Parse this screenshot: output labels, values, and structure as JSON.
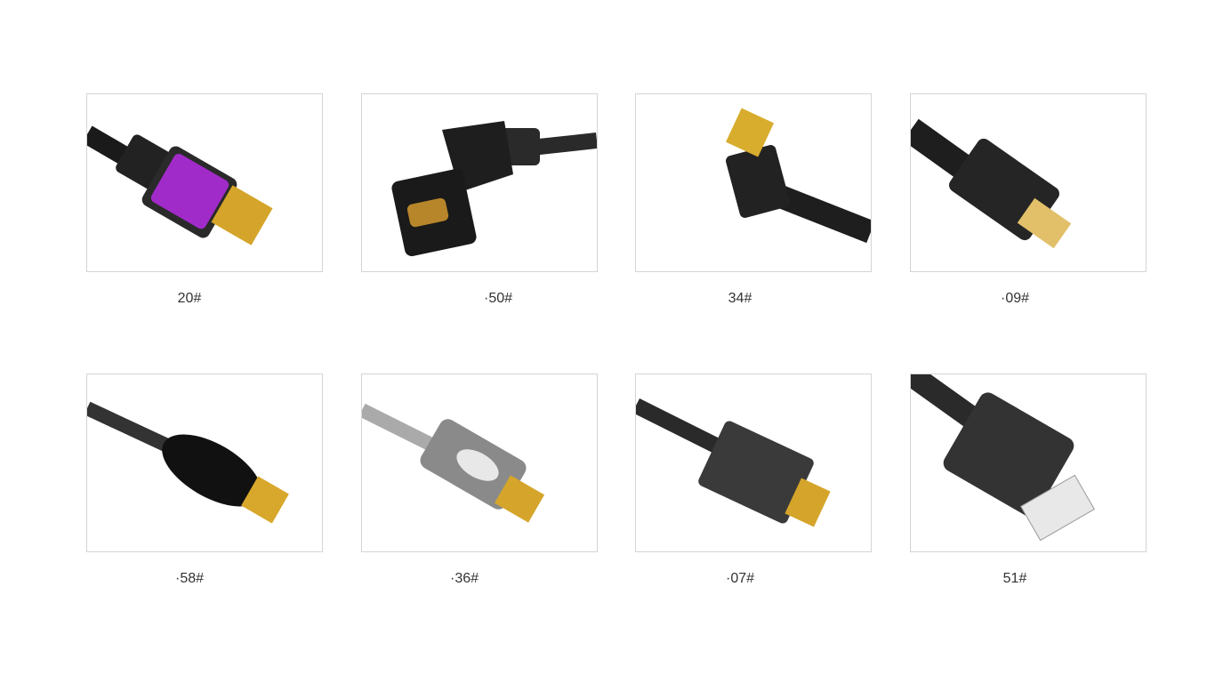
{
  "products": [
    {
      "label": "20#"
    },
    {
      "label": "·50#"
    },
    {
      "label": "34#"
    },
    {
      "label": "·09#"
    },
    {
      "label": "·58#"
    },
    {
      "label": "·36#"
    },
    {
      "label": "·07#"
    },
    {
      "label": "51#"
    }
  ]
}
